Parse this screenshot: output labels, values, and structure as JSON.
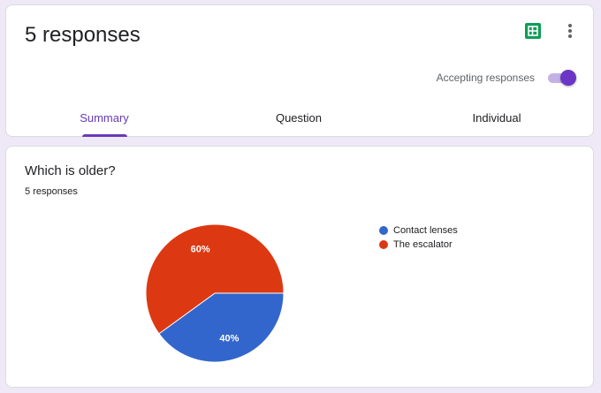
{
  "header": {
    "title": "5 responses",
    "accepting_label": "Accepting responses",
    "accepting": true,
    "tabs": [
      {
        "label": "Summary",
        "active": true
      },
      {
        "label": "Question",
        "active": false
      },
      {
        "label": "Individual",
        "active": false
      }
    ]
  },
  "question": {
    "title": "Which is older?",
    "response_count": "5 responses"
  },
  "chart_data": {
    "type": "pie",
    "categories": [
      "Contact lenses",
      "The escalator"
    ],
    "values": [
      40,
      60
    ],
    "labels": [
      "40%",
      "60%"
    ],
    "colors": [
      "#3366cc",
      "#dc3912"
    ],
    "legend": "right"
  },
  "colors": {
    "accent": "#673ab7",
    "sheets": "#0f9d58",
    "background": "#efe9f7"
  }
}
